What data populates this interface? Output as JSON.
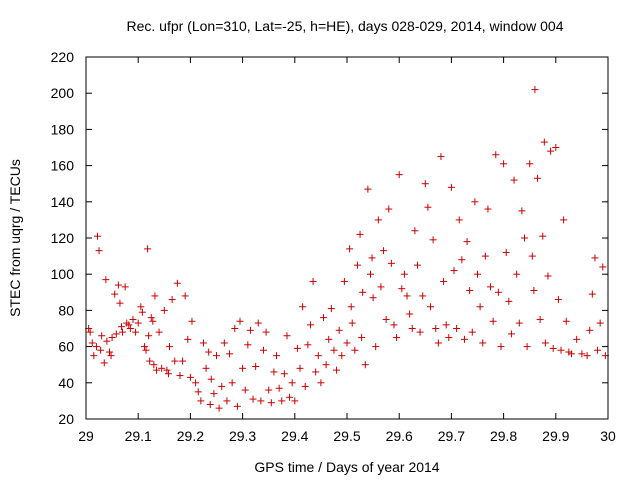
{
  "chart_data": {
    "type": "scatter",
    "title": "Rec. ufpr (Lon=310, Lat=-25, h=HE), days 028-029, 2014, window 004",
    "xlabel": "GPS time / Days of year 2014",
    "ylabel": "STEC from uqrg / TECUs",
    "xlim": [
      29,
      30
    ],
    "ylim": [
      20,
      220
    ],
    "xticks": [
      "29",
      "29.1",
      "29.2",
      "29.3",
      "29.4",
      "29.5",
      "29.6",
      "29.7",
      "29.8",
      "29.9",
      "30"
    ],
    "xtick_values": [
      29,
      29.1,
      29.2,
      29.3,
      29.4,
      29.5,
      29.6,
      29.7,
      29.8,
      29.9,
      30
    ],
    "yticks": [
      "20",
      "40",
      "60",
      "80",
      "100",
      "120",
      "140",
      "160",
      "180",
      "200",
      "220"
    ],
    "ytick_values": [
      20,
      40,
      60,
      80,
      100,
      120,
      140,
      160,
      180,
      200,
      220
    ],
    "grid": false,
    "marker": "plus",
    "color": "#cc0000",
    "points": [
      [
        29.005,
        70
      ],
      [
        29.008,
        68
      ],
      [
        29.012,
        62
      ],
      [
        29.015,
        55
      ],
      [
        29.02,
        60
      ],
      [
        29.022,
        121
      ],
      [
        29.025,
        113
      ],
      [
        29.028,
        58
      ],
      [
        29.03,
        66
      ],
      [
        29.035,
        51
      ],
      [
        29.038,
        97
      ],
      [
        29.04,
        63
      ],
      [
        29.045,
        57
      ],
      [
        29.048,
        55
      ],
      [
        29.05,
        65
      ],
      [
        29.055,
        89
      ],
      [
        29.058,
        67
      ],
      [
        29.062,
        94
      ],
      [
        29.065,
        84
      ],
      [
        29.068,
        71
      ],
      [
        29.07,
        68
      ],
      [
        29.075,
        93
      ],
      [
        29.078,
        73
      ],
      [
        29.082,
        72
      ],
      [
        29.085,
        70
      ],
      [
        29.09,
        75
      ],
      [
        29.095,
        68
      ],
      [
        29.1,
        73
      ],
      [
        29.105,
        82
      ],
      [
        29.108,
        79
      ],
      [
        29.112,
        60
      ],
      [
        29.115,
        58
      ],
      [
        29.118,
        114
      ],
      [
        29.12,
        66
      ],
      [
        29.122,
        52
      ],
      [
        29.125,
        76
      ],
      [
        29.128,
        74
      ],
      [
        29.13,
        50
      ],
      [
        29.132,
        88
      ],
      [
        29.135,
        47
      ],
      [
        29.14,
        68
      ],
      [
        29.145,
        48
      ],
      [
        29.15,
        80
      ],
      [
        29.155,
        47
      ],
      [
        29.158,
        45
      ],
      [
        29.16,
        60
      ],
      [
        29.165,
        86
      ],
      [
        29.17,
        52
      ],
      [
        29.175,
        95
      ],
      [
        29.18,
        44
      ],
      [
        29.185,
        52
      ],
      [
        29.19,
        88
      ],
      [
        29.195,
        64
      ],
      [
        29.2,
        43
      ],
      [
        29.203,
        74
      ],
      [
        29.21,
        40
      ],
      [
        29.215,
        35
      ],
      [
        29.22,
        30
      ],
      [
        29.225,
        62
      ],
      [
        29.23,
        48
      ],
      [
        29.235,
        57
      ],
      [
        29.238,
        28
      ],
      [
        29.24,
        42
      ],
      [
        29.245,
        34
      ],
      [
        29.25,
        55
      ],
      [
        29.255,
        26
      ],
      [
        29.26,
        38
      ],
      [
        29.265,
        62
      ],
      [
        29.27,
        30
      ],
      [
        29.275,
        56
      ],
      [
        29.28,
        40
      ],
      [
        29.285,
        70
      ],
      [
        29.29,
        27
      ],
      [
        29.295,
        74
      ],
      [
        29.3,
        48
      ],
      [
        29.305,
        36
      ],
      [
        29.31,
        61
      ],
      [
        29.315,
        69
      ],
      [
        29.32,
        31
      ],
      [
        29.325,
        49
      ],
      [
        29.33,
        73
      ],
      [
        29.335,
        30
      ],
      [
        29.34,
        58
      ],
      [
        29.345,
        68
      ],
      [
        29.35,
        36
      ],
      [
        29.355,
        29
      ],
      [
        29.36,
        46
      ],
      [
        29.365,
        55
      ],
      [
        29.37,
        37
      ],
      [
        29.375,
        30
      ],
      [
        29.38,
        45
      ],
      [
        29.385,
        66
      ],
      [
        29.39,
        32
      ],
      [
        29.395,
        40
      ],
      [
        29.4,
        30
      ],
      [
        29.405,
        59
      ],
      [
        29.41,
        48
      ],
      [
        29.415,
        82
      ],
      [
        29.42,
        38
      ],
      [
        29.425,
        61
      ],
      [
        29.43,
        72
      ],
      [
        29.435,
        96
      ],
      [
        29.44,
        46
      ],
      [
        29.445,
        55
      ],
      [
        29.45,
        40
      ],
      [
        29.455,
        76
      ],
      [
        29.46,
        50
      ],
      [
        29.465,
        64
      ],
      [
        29.47,
        81
      ],
      [
        29.475,
        58
      ],
      [
        29.48,
        47
      ],
      [
        29.485,
        69
      ],
      [
        29.49,
        55
      ],
      [
        29.495,
        96
      ],
      [
        29.5,
        62
      ],
      [
        29.505,
        114
      ],
      [
        29.508,
        82
      ],
      [
        29.51,
        73
      ],
      [
        29.515,
        58
      ],
      [
        29.52,
        105
      ],
      [
        29.525,
        122
      ],
      [
        29.528,
        65
      ],
      [
        29.53,
        90
      ],
      [
        29.535,
        50
      ],
      [
        29.54,
        147
      ],
      [
        29.545,
        100
      ],
      [
        29.548,
        109
      ],
      [
        29.55,
        87
      ],
      [
        29.555,
        60
      ],
      [
        29.56,
        130
      ],
      [
        29.565,
        93
      ],
      [
        29.57,
        113
      ],
      [
        29.575,
        75
      ],
      [
        29.58,
        136
      ],
      [
        29.585,
        106
      ],
      [
        29.59,
        72
      ],
      [
        29.595,
        65
      ],
      [
        29.6,
        155
      ],
      [
        29.605,
        92
      ],
      [
        29.61,
        100
      ],
      [
        29.615,
        88
      ],
      [
        29.62,
        78
      ],
      [
        29.625,
        70
      ],
      [
        29.63,
        124
      ],
      [
        29.635,
        105
      ],
      [
        29.64,
        68
      ],
      [
        29.645,
        88
      ],
      [
        29.65,
        150
      ],
      [
        29.655,
        137
      ],
      [
        29.66,
        82
      ],
      [
        29.665,
        119
      ],
      [
        29.67,
        70
      ],
      [
        29.675,
        62
      ],
      [
        29.68,
        165
      ],
      [
        29.685,
        96
      ],
      [
        29.69,
        72
      ],
      [
        29.695,
        65
      ],
      [
        29.7,
        148
      ],
      [
        29.705,
        102
      ],
      [
        29.71,
        70
      ],
      [
        29.715,
        130
      ],
      [
        29.72,
        108
      ],
      [
        29.725,
        64
      ],
      [
        29.73,
        118
      ],
      [
        29.735,
        91
      ],
      [
        29.74,
        68
      ],
      [
        29.745,
        140
      ],
      [
        29.75,
        100
      ],
      [
        29.755,
        82
      ],
      [
        29.76,
        62
      ],
      [
        29.765,
        110
      ],
      [
        29.77,
        136
      ],
      [
        29.775,
        93
      ],
      [
        29.78,
        74
      ],
      [
        29.785,
        166
      ],
      [
        29.79,
        90
      ],
      [
        29.795,
        60
      ],
      [
        29.8,
        161
      ],
      [
        29.805,
        112
      ],
      [
        29.81,
        85
      ],
      [
        29.815,
        67
      ],
      [
        29.82,
        152
      ],
      [
        29.825,
        100
      ],
      [
        29.83,
        73
      ],
      [
        29.835,
        135
      ],
      [
        29.84,
        120
      ],
      [
        29.845,
        60
      ],
      [
        29.85,
        161
      ],
      [
        29.855,
        110
      ],
      [
        29.858,
        91
      ],
      [
        29.86,
        202
      ],
      [
        29.865,
        153
      ],
      [
        29.87,
        75
      ],
      [
        29.875,
        121
      ],
      [
        29.878,
        173
      ],
      [
        29.88,
        62
      ],
      [
        29.885,
        99
      ],
      [
        29.89,
        168
      ],
      [
        29.895,
        59
      ],
      [
        29.9,
        170
      ],
      [
        29.905,
        86
      ],
      [
        29.91,
        58
      ],
      [
        29.915,
        130
      ],
      [
        29.92,
        74
      ],
      [
        29.925,
        57
      ],
      [
        29.93,
        56
      ],
      [
        29.94,
        64
      ],
      [
        29.95,
        56
      ],
      [
        29.96,
        55
      ],
      [
        29.965,
        69
      ],
      [
        29.97,
        89
      ],
      [
        29.975,
        109
      ],
      [
        29.98,
        58
      ],
      [
        29.985,
        73
      ],
      [
        29.99,
        104
      ],
      [
        29.995,
        55
      ]
    ]
  }
}
